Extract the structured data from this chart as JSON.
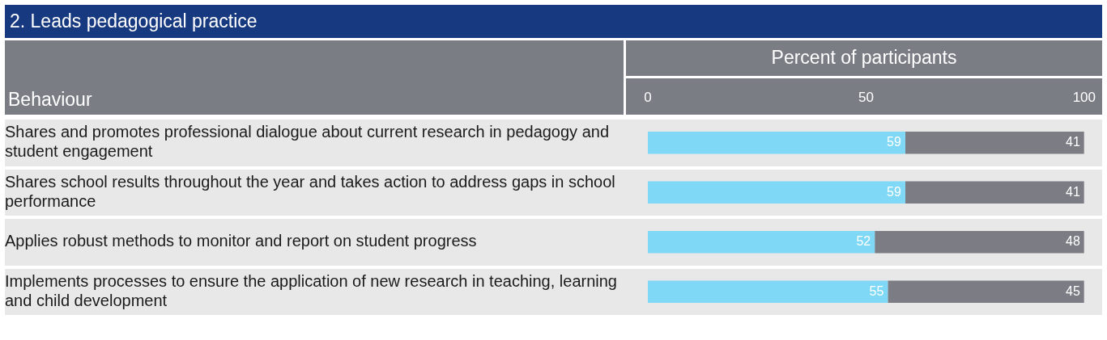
{
  "chart_data": {
    "type": "bar",
    "orientation": "horizontal",
    "stacked": true,
    "title": "2. Leads pedagogical practice",
    "xlabel": "Percent of participants",
    "ylabel": "Behaviour",
    "categories": [
      "Shares and promotes professional dialogue about current research in pedagogy and student engagement",
      "Shares school results throughout the year and takes action to address gaps in school performance",
      "Applies robust methods to monitor and report on student progress",
      "Implements processes to ensure the application of new research in teaching, learning and child development"
    ],
    "series": [
      {
        "color": "#7fd8f5",
        "values": [
          59,
          59,
          52,
          55
        ]
      },
      {
        "color": "#7b7c84",
        "values": [
          41,
          41,
          48,
          45
        ]
      }
    ],
    "xlim": [
      0,
      100
    ],
    "xticks": [
      0,
      50,
      100
    ],
    "data_labels": true,
    "grid": false,
    "legend": false
  }
}
